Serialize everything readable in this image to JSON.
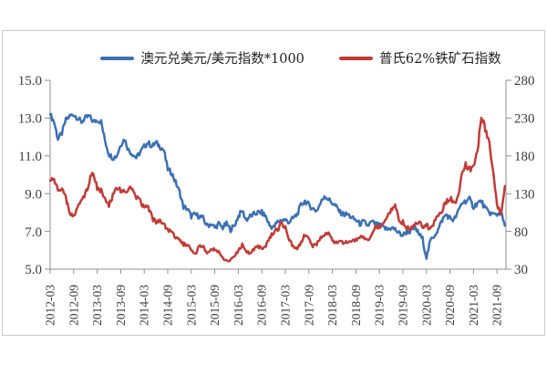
{
  "chart_data": {
    "type": "line",
    "title": "",
    "x_start": "2012-03",
    "x_end": "2021-11",
    "x_frequency": "monthly",
    "x_tick_labels": [
      "2012-03",
      "2012-09",
      "2013-03",
      "2013-09",
      "2014-03",
      "2014-09",
      "2015-03",
      "2015-09",
      "2016-03",
      "2016-09",
      "2017-03",
      "2017-09",
      "2018-03",
      "2018-09",
      "2019-03",
      "2019-09",
      "2020-03",
      "2020-09",
      "2021-03",
      "2021-09"
    ],
    "left_axis": {
      "tick_labels": [
        "15.0",
        "13.0",
        "11.0",
        "9.0",
        "7.0",
        "5.0"
      ],
      "min": 5.0,
      "max": 15.0
    },
    "right_axis": {
      "tick_labels": [
        "280",
        "230",
        "180",
        "130",
        "80",
        "30"
      ],
      "min": 30,
      "max": 280
    },
    "grid": false,
    "legend_position": "top",
    "series": [
      {
        "name": "澳元兑美元/美元指数*1000",
        "axis": "left",
        "color": "#3c70b4",
        "values": [
          13.2,
          12.8,
          11.9,
          12.2,
          12.9,
          13.1,
          13.2,
          13.0,
          12.8,
          13.0,
          13.1,
          12.8,
          12.9,
          12.8,
          11.8,
          11.1,
          10.9,
          11.0,
          11.6,
          11.9,
          11.3,
          11.1,
          10.9,
          11.2,
          11.5,
          11.7,
          11.5,
          11.7,
          11.5,
          11.3,
          10.3,
          10.1,
          9.6,
          9.1,
          8.3,
          8.2,
          7.8,
          7.9,
          7.8,
          7.7,
          7.3,
          7.4,
          7.2,
          7.4,
          7.2,
          7.4,
          7.1,
          7.3,
          7.8,
          8.1,
          7.6,
          7.8,
          7.9,
          8.0,
          8.0,
          7.8,
          7.3,
          7.2,
          7.5,
          7.6,
          7.6,
          7.5,
          7.7,
          7.9,
          8.4,
          8.6,
          8.4,
          8.2,
          8.1,
          8.5,
          8.9,
          8.7,
          8.5,
          8.3,
          8.0,
          7.9,
          7.9,
          7.7,
          7.6,
          7.4,
          7.5,
          7.3,
          7.5,
          7.4,
          7.3,
          7.2,
          7.1,
          7.2,
          7.1,
          6.9,
          6.8,
          7.0,
          7.0,
          7.2,
          6.9,
          6.6,
          5.6,
          6.5,
          6.8,
          7.1,
          7.6,
          7.9,
          7.7,
          7.6,
          8.0,
          8.5,
          8.6,
          8.7,
          8.3,
          8.5,
          8.6,
          8.2,
          8.0,
          7.9,
          7.9,
          8.0,
          7.3
        ]
      },
      {
        "name": "普氏62%铁矿石指数",
        "axis": "right",
        "color": "#c23b36",
        "values": [
          147,
          148,
          137,
          134,
          124,
          104,
          99,
          114,
          119,
          129,
          148,
          157,
          139,
          134,
          124,
          114,
          127,
          137,
          133,
          132,
          136,
          134,
          124,
          119,
          111,
          113,
          98,
          92,
          95,
          92,
          81,
          79,
          71,
          68,
          63,
          62,
          57,
          50,
          60,
          61,
          51,
          55,
          56,
          52,
          45,
          40,
          42,
          46,
          55,
          62,
          54,
          51,
          57,
          60,
          57,
          60,
          72,
          79,
          82,
          90,
          86,
          68,
          61,
          55,
          66,
          76,
          71,
          61,
          63,
          73,
          76,
          78,
          68,
          65,
          66,
          64,
          66,
          67,
          68,
          72,
          72,
          68,
          75,
          86,
          85,
          93,
          99,
          108,
          118,
          92,
          92,
          84,
          84,
          91,
          93,
          86,
          88,
          83,
          92,
          102,
          107,
          120,
          123,
          119,
          123,
          152,
          168,
          163,
          164,
          183,
          230,
          214,
          200,
          158,
          118,
          100,
          140
        ]
      }
    ]
  }
}
